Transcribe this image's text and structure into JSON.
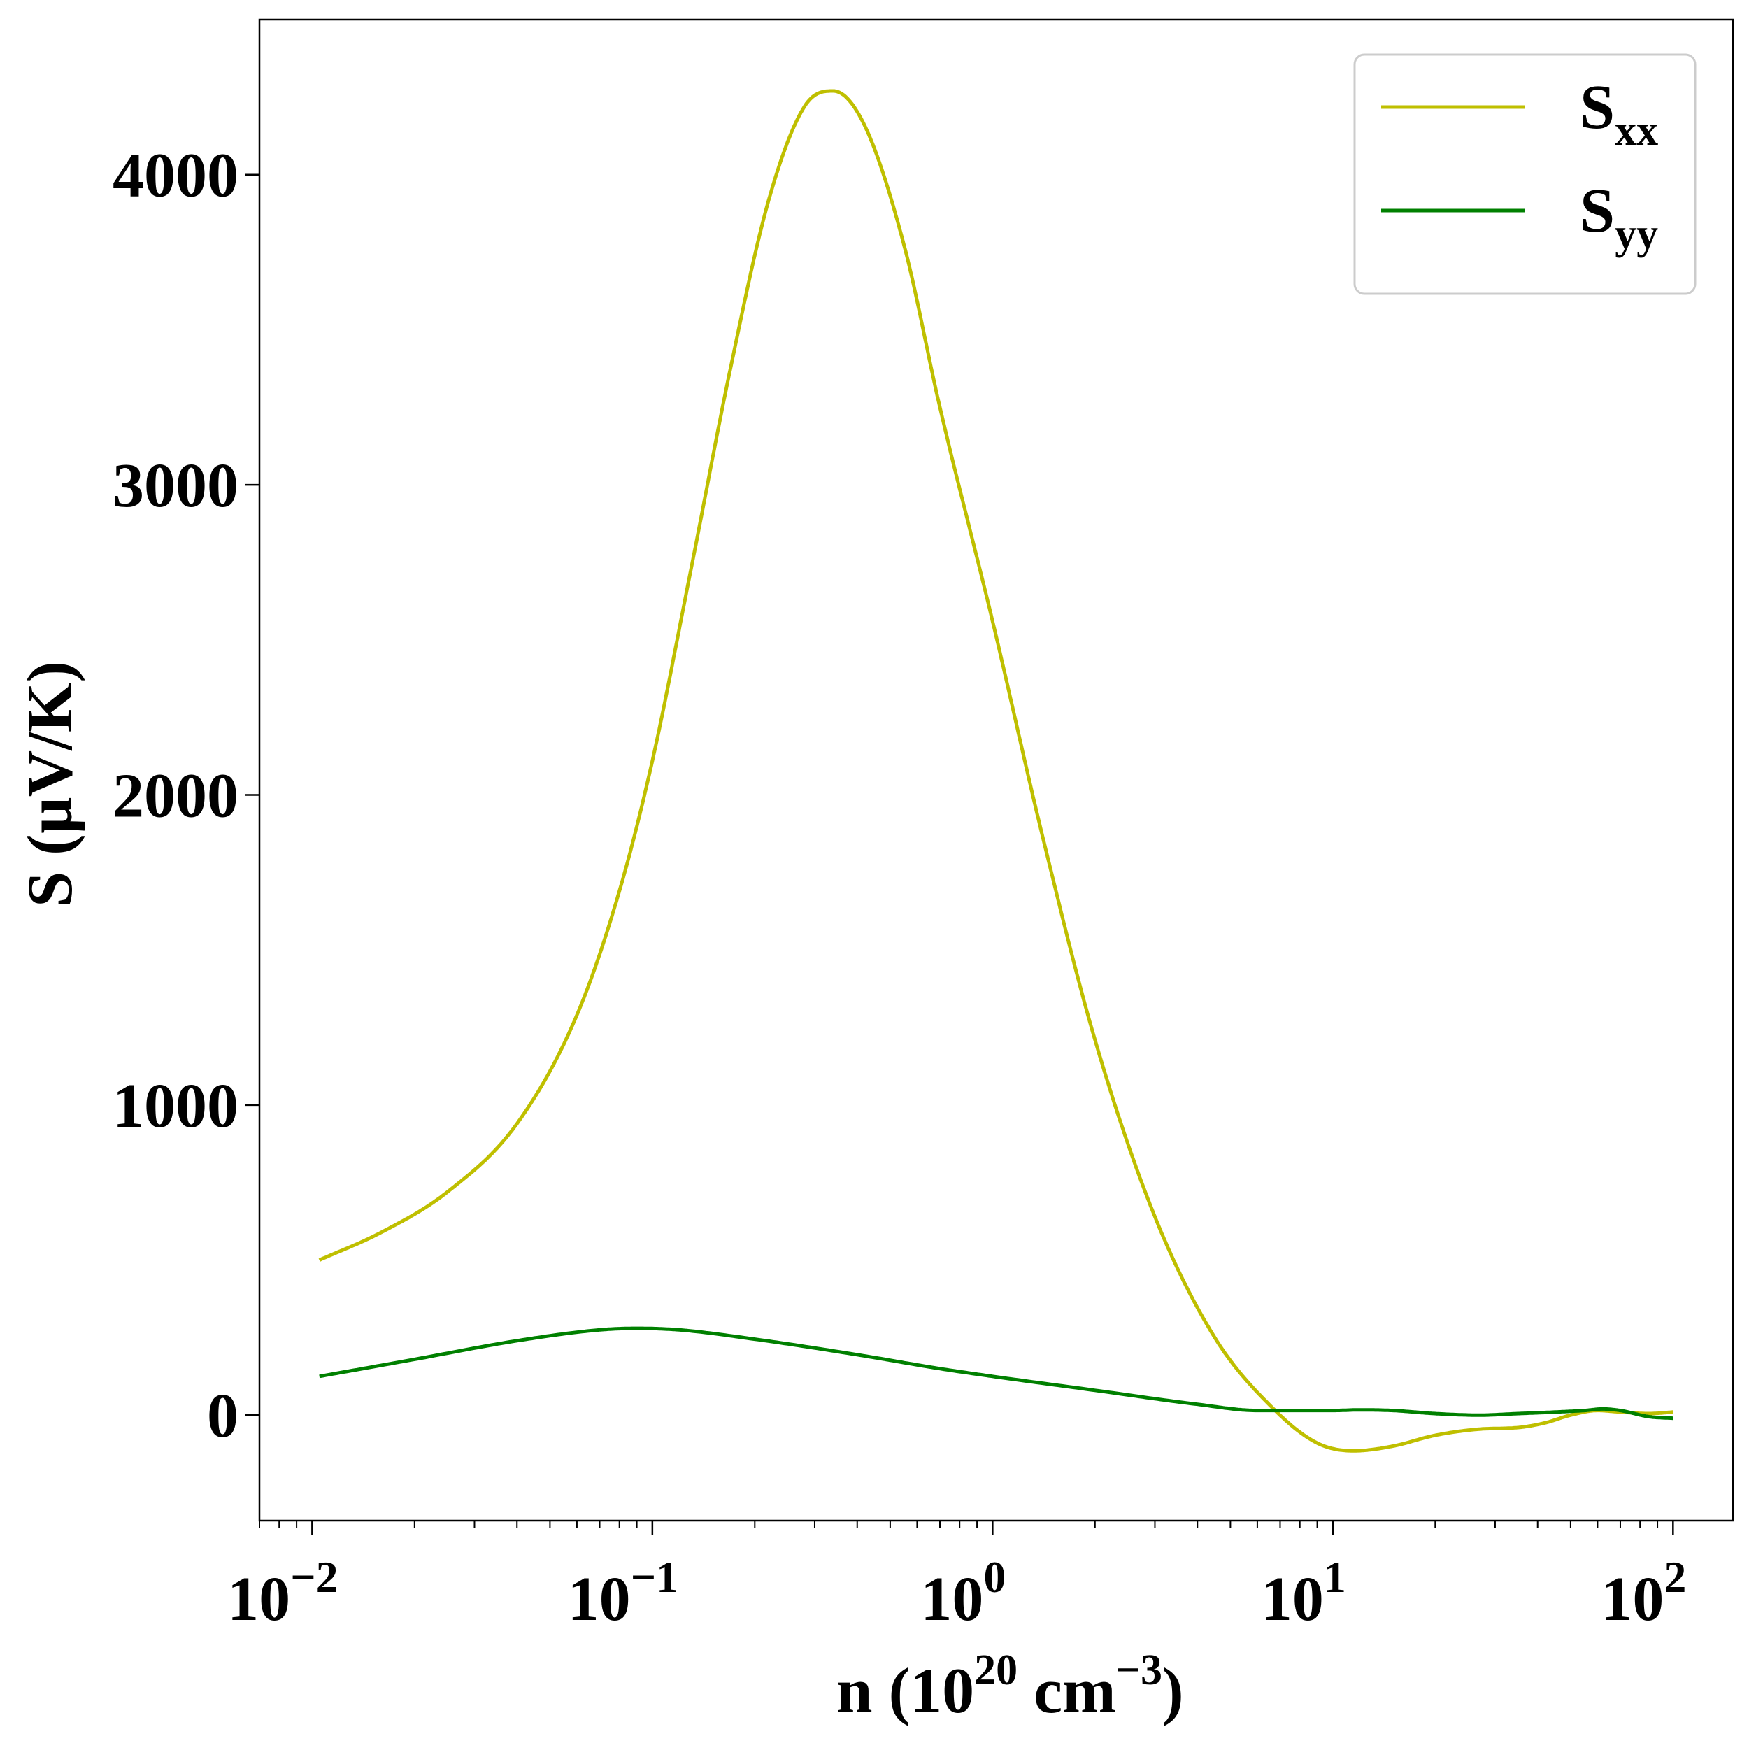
{
  "chart_data": {
    "type": "line",
    "title": "",
    "xlabel": {
      "base": "n (10",
      "sup1": "20",
      "mid": " cm",
      "sup2": "−3",
      "end": ")"
    },
    "ylabel": "S (µV/K)",
    "xscale": "log",
    "xlim": [
      0.007,
      150
    ],
    "ylim": [
      -340,
      4500
    ],
    "xtick_labels": [
      {
        "value": 0.01,
        "base": "10",
        "exp": "−2"
      },
      {
        "value": 0.1,
        "base": "10",
        "exp": "−1"
      },
      {
        "value": 1,
        "base": "10",
        "exp": "0"
      },
      {
        "value": 10,
        "base": "10",
        "exp": "1"
      },
      {
        "value": 100,
        "base": "10",
        "exp": "2"
      }
    ],
    "yticks": [
      0,
      1000,
      2000,
      3000,
      4000
    ],
    "ytick_labels": [
      "0",
      "1000",
      "2000",
      "3000",
      "4000"
    ],
    "grid": false,
    "legend_position": "top-right",
    "series": [
      {
        "name": "S",
        "subscript": "xx",
        "color": "#bfbf00",
        "x": [
          0.0105,
          0.016,
          0.025,
          0.04,
          0.06,
          0.08,
          0.1,
          0.13,
          0.17,
          0.22,
          0.28,
          0.34,
          0.42,
          0.55,
          0.7,
          1.0,
          1.4,
          2.0,
          3.0,
          4.5,
          6.7,
          9.0,
          11.5,
          15,
          20,
          27,
          35,
          42,
          50,
          60,
          70,
          85,
          100
        ],
        "y": [
          500,
          590,
          720,
          940,
          1290,
          1690,
          2110,
          2730,
          3380,
          3920,
          4220,
          4270,
          4160,
          3770,
          3250,
          2560,
          1870,
          1210,
          640,
          250,
          20,
          -90,
          -115,
          -100,
          -65,
          -45,
          -40,
          -25,
          0,
          15,
          10,
          5,
          10
        ]
      },
      {
        "name": "S",
        "subscript": "yy",
        "color": "#008000",
        "x": [
          0.0105,
          0.02,
          0.04,
          0.07,
          0.09,
          0.12,
          0.2,
          0.4,
          0.7,
          1.0,
          2.0,
          4.0,
          6.0,
          10,
          12,
          15,
          20,
          27,
          35,
          45,
          55,
          62,
          70,
          85,
          100
        ],
        "y": [
          125,
          180,
          240,
          275,
          280,
          275,
          245,
          195,
          150,
          125,
          80,
          35,
          15,
          15,
          17,
          15,
          5,
          0,
          5,
          10,
          15,
          20,
          15,
          -5,
          -10
        ]
      }
    ]
  }
}
